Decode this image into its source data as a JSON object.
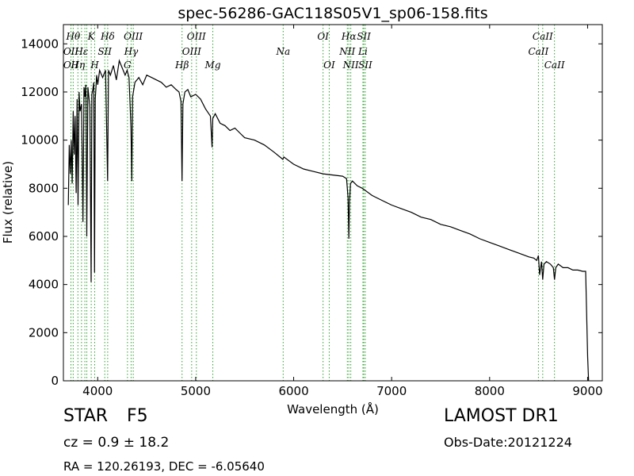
{
  "chart_data": {
    "type": "line",
    "title": "spec-56286-GAC118S05V1_sp06-158.fits",
    "xlabel": "Wavelength (Å)",
    "ylabel": "Flux (relative)",
    "xlim": [
      3650,
      9150
    ],
    "ylim": [
      0,
      14800
    ],
    "xticks": [
      4000,
      5000,
      6000,
      7000,
      8000,
      9000
    ],
    "yticks": [
      0,
      2000,
      4000,
      6000,
      8000,
      10000,
      12000,
      14000
    ],
    "grid": false,
    "line_color": "#000000",
    "marker_color": "#2ca02c",
    "series": [
      {
        "x": [
          3700,
          3710,
          3720,
          3730,
          3740,
          3750,
          3760,
          3770,
          3780,
          3790,
          3800,
          3810,
          3820,
          3835,
          3850,
          3860,
          3870,
          3880,
          3889,
          3900,
          3920,
          3933,
          3940,
          3950,
          3960,
          3968,
          3975,
          3990,
          4000,
          4020,
          4050,
          4080,
          4101,
          4110,
          4130,
          4160,
          4190,
          4220,
          4250,
          4280,
          4300,
          4320,
          4340,
          4348,
          4356,
          4380,
          4420,
          4460,
          4500,
          4550,
          4600,
          4650,
          4700,
          4750,
          4800,
          4830,
          4850,
          4861,
          4870,
          4890,
          4920,
          4950,
          5000,
          5050,
          5100,
          5150,
          5167,
          5175,
          5200,
          5250,
          5300,
          5350,
          5400,
          5450,
          5500,
          5600,
          5700,
          5800,
          5890,
          5900,
          6000,
          6100,
          6200,
          6300,
          6400,
          6500,
          6540,
          6555,
          6563,
          6570,
          6580,
          6600,
          6650,
          6700,
          6800,
          6900,
          7000,
          7100,
          7200,
          7300,
          7400,
          7500,
          7600,
          7700,
          7800,
          7900,
          8000,
          8100,
          8200,
          8300,
          8400,
          8450,
          8480,
          8498,
          8510,
          8530,
          8542,
          8555,
          8580,
          8620,
          8650,
          8662,
          8675,
          8700,
          8750,
          8800,
          8850,
          8900,
          8950,
          8980,
          9000,
          9010
        ],
        "values": [
          7300,
          9800,
          8600,
          10000,
          8200,
          11200,
          9400,
          11000,
          7800,
          11700,
          7300,
          12000,
          11200,
          11500,
          6600,
          12200,
          11800,
          12300,
          6000,
          12200,
          11400,
          4100,
          11900,
          12100,
          12400,
          4500,
          11700,
          12700,
          12300,
          12900,
          12600,
          12900,
          8300,
          12900,
          12700,
          13100,
          12500,
          13300,
          13000,
          12700,
          12900,
          12600,
          10500,
          8300,
          11800,
          12400,
          12600,
          12300,
          12700,
          12600,
          12500,
          12400,
          12200,
          12300,
          12100,
          12000,
          11600,
          8300,
          11500,
          12000,
          12100,
          11800,
          11900,
          11700,
          11300,
          11000,
          9700,
          10900,
          11100,
          10700,
          10600,
          10400,
          10500,
          10300,
          10100,
          10000,
          9800,
          9500,
          9200,
          9300,
          9000,
          8800,
          8700,
          8600,
          8550,
          8500,
          8400,
          7600,
          5900,
          7400,
          8200,
          8300,
          8100,
          8000,
          7700,
          7500,
          7300,
          7150,
          7000,
          6800,
          6700,
          6500,
          6400,
          6250,
          6100,
          5900,
          5750,
          5600,
          5450,
          5300,
          5150,
          5100,
          5000,
          5200,
          4400,
          4950,
          4200,
          4850,
          4950,
          4850,
          4700,
          4200,
          4700,
          4850,
          4700,
          4700,
          4600,
          4600,
          4550,
          4550,
          1000,
          0
        ]
      }
    ],
    "line_markers": [
      {
        "wave": 3727,
        "labels": [
          {
            "text": "OII",
            "row": 1
          },
          {
            "text": "OII",
            "row": 2
          }
        ]
      },
      {
        "wave": 3750,
        "labels": [
          {
            "text": "Hθ",
            "row": 0
          }
        ]
      },
      {
        "wave": 3798,
        "labels": [
          {
            "text": "Hη",
            "row": 2
          }
        ]
      },
      {
        "wave": 3835,
        "labels": [
          {
            "text": "Hε",
            "row": 1
          }
        ]
      },
      {
        "wave": 3869,
        "labels": []
      },
      {
        "wave": 3889,
        "labels": []
      },
      {
        "wave": 3934,
        "labels": [
          {
            "text": "K",
            "row": 0
          }
        ]
      },
      {
        "wave": 3969,
        "labels": [
          {
            "text": "H",
            "row": 2
          }
        ]
      },
      {
        "wave": 4072,
        "labels": [
          {
            "text": "SII",
            "row": 1
          }
        ]
      },
      {
        "wave": 4102,
        "labels": [
          {
            "text": "Hδ",
            "row": 0
          }
        ]
      },
      {
        "wave": 4304,
        "labels": [
          {
            "text": "G",
            "row": 2
          }
        ]
      },
      {
        "wave": 4341,
        "labels": [
          {
            "text": "Hγ",
            "row": 1
          }
        ]
      },
      {
        "wave": 4363,
        "labels": [
          {
            "text": "OIII",
            "row": 0
          }
        ]
      },
      {
        "wave": 4861,
        "labels": [
          {
            "text": "Hβ",
            "row": 2
          }
        ]
      },
      {
        "wave": 4959,
        "labels": [
          {
            "text": "OIII",
            "row": 1
          }
        ]
      },
      {
        "wave": 5007,
        "labels": [
          {
            "text": "OIII",
            "row": 0
          }
        ]
      },
      {
        "wave": 5175,
        "labels": [
          {
            "text": "Mg",
            "row": 2
          }
        ]
      },
      {
        "wave": 5893,
        "labels": [
          {
            "text": "Na",
            "row": 1
          }
        ]
      },
      {
        "wave": 6300,
        "labels": [
          {
            "text": "OI",
            "row": 0
          }
        ]
      },
      {
        "wave": 6363,
        "labels": [
          {
            "text": "OI",
            "row": 2
          }
        ]
      },
      {
        "wave": 6548,
        "labels": [
          {
            "text": "NII",
            "row": 1
          }
        ]
      },
      {
        "wave": 6563,
        "labels": [
          {
            "text": "Hα",
            "row": 0
          }
        ]
      },
      {
        "wave": 6583,
        "labels": [
          {
            "text": "NII",
            "row": 2
          }
        ]
      },
      {
        "wave": 6707,
        "labels": [
          {
            "text": "Li",
            "row": 1
          }
        ]
      },
      {
        "wave": 6716,
        "labels": [
          {
            "text": "SII",
            "row": 0
          }
        ]
      },
      {
        "wave": 6731,
        "labels": [
          {
            "text": "SII",
            "row": 2
          }
        ]
      },
      {
        "wave": 8498,
        "labels": [
          {
            "text": "CaII",
            "row": 1
          }
        ]
      },
      {
        "wave": 8542,
        "labels": [
          {
            "text": "CaII",
            "row": 0
          }
        ]
      },
      {
        "wave": 8662,
        "labels": [
          {
            "text": "CaII",
            "row": 2
          }
        ]
      }
    ]
  },
  "info": {
    "object_type": "STAR",
    "object_class": "F5",
    "survey": "LAMOST DR1",
    "redshift": "cz = 0.9 ± 18.2",
    "obs_date": "Obs-Date:20121224",
    "coords": "RA = 120.26193, DEC = -6.05640"
  }
}
